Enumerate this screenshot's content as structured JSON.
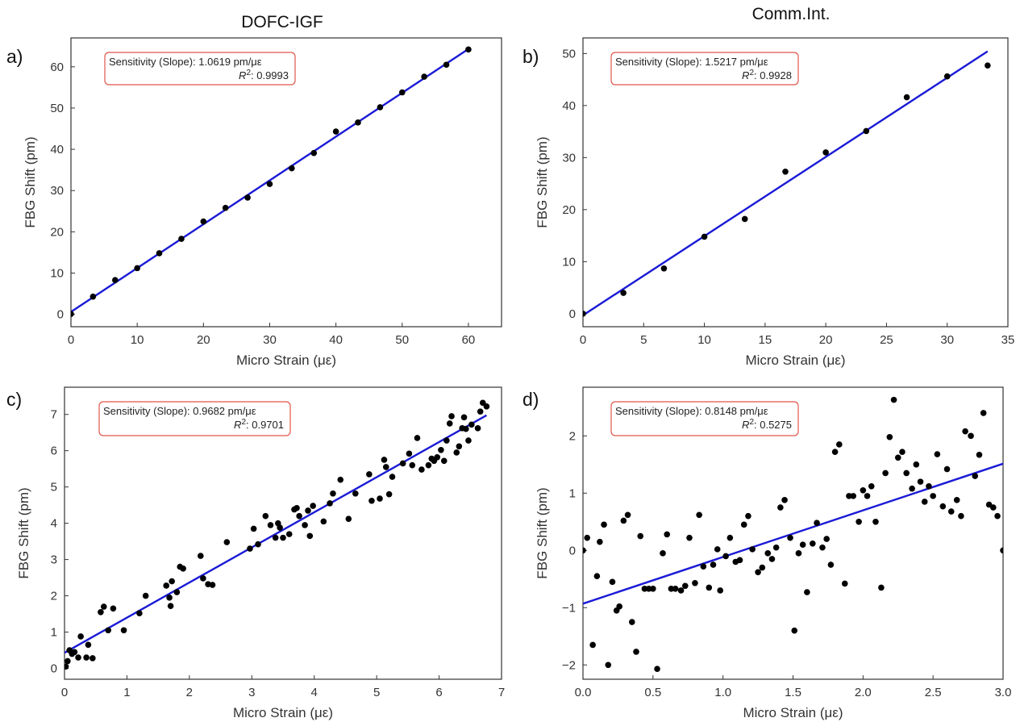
{
  "column_titles": {
    "left": "DOFC-IGF",
    "right": "Comm.Int."
  },
  "chart_data": [
    {
      "type": "scatter",
      "panel_label": "a)",
      "xlabel": "Micro Strain (με)",
      "ylabel": "FBG Shift (pm)",
      "xlim": [
        0,
        65
      ],
      "ylim": [
        -3,
        67
      ],
      "xticks": [
        0,
        10,
        20,
        30,
        40,
        50,
        60
      ],
      "xtick_labels": [
        "0",
        "10",
        "20",
        "30",
        "40",
        "50",
        "60"
      ],
      "yticks": [
        0,
        10,
        20,
        30,
        40,
        50,
        60
      ],
      "ytick_labels": [
        "0",
        "10",
        "20",
        "30",
        "40",
        "50",
        "60"
      ],
      "annotation": {
        "line1": "Sensitivity (Slope): 1.0619 pm/με",
        "r2_value": "0.9993"
      },
      "fit_line": {
        "slope": 1.0619,
        "intercept": 0.6
      },
      "series": [
        {
          "x": [
            0,
            3.33,
            6.67,
            10,
            13.33,
            16.67,
            20,
            23.33,
            26.67,
            30,
            33.33,
            36.67,
            40,
            43.33,
            46.67,
            50,
            53.33,
            56.67,
            60
          ],
          "y": [
            0.1,
            4.3,
            8.3,
            11.2,
            14.8,
            18.3,
            22.5,
            25.8,
            28.3,
            31.6,
            35.4,
            39.1,
            44.3,
            46.5,
            50.2,
            53.8,
            57.6,
            60.5,
            64.2
          ]
        }
      ],
      "grid": false
    },
    {
      "type": "scatter",
      "panel_label": "b)",
      "xlabel": "Micro Strain (με)",
      "ylabel": "FBG Shift (pm)",
      "xlim": [
        0,
        35
      ],
      "ylim": [
        -2.5,
        53
      ],
      "xticks": [
        0,
        5,
        10,
        15,
        20,
        25,
        30,
        35
      ],
      "xtick_labels": [
        "0",
        "5",
        "10",
        "15",
        "20",
        "25",
        "30",
        "35"
      ],
      "yticks": [
        0,
        10,
        20,
        30,
        40,
        50
      ],
      "ytick_labels": [
        "0",
        "10",
        "20",
        "30",
        "40",
        "50"
      ],
      "annotation": {
        "line1": "Sensitivity (Slope): 1.5217 pm/με",
        "r2_value": "0.9928"
      },
      "fit_line": {
        "slope": 1.5217,
        "intercept": -0.3
      },
      "series": [
        {
          "x": [
            0,
            3.33,
            6.67,
            10,
            13.33,
            16.67,
            20,
            23.33,
            26.67,
            30,
            33.33
          ],
          "y": [
            0,
            4,
            8.7,
            14.8,
            18.2,
            27.3,
            31,
            35.1,
            41.6,
            45.6,
            47.7
          ]
        }
      ],
      "grid": false
    },
    {
      "type": "scatter",
      "panel_label": "c)",
      "xlabel": "Micro Strain (με)",
      "ylabel": "FBG Shift (pm)",
      "xlim": [
        0,
        7
      ],
      "ylim": [
        -0.3,
        7.75
      ],
      "xticks": [
        0,
        1,
        2,
        3,
        4,
        5,
        6,
        7
      ],
      "xtick_labels": [
        "0",
        "1",
        "2",
        "3",
        "4",
        "5",
        "6",
        "7"
      ],
      "yticks": [
        0,
        1,
        2,
        3,
        4,
        5,
        6,
        7
      ],
      "ytick_labels": [
        "0",
        "1",
        "2",
        "3",
        "4",
        "5",
        "6",
        "7"
      ],
      "annotation": {
        "line1": "Sensitivity (Slope): 0.9682 pm/με",
        "r2_value": "0.9701"
      },
      "fit_line": {
        "slope": 0.9682,
        "intercept": 0.43
      },
      "series": [
        {
          "x": [
            0.02,
            0.05,
            0.08,
            0.12,
            0.16,
            0.22,
            0.26,
            0.35,
            0.38,
            0.45,
            0.58,
            0.63,
            0.7,
            0.78,
            0.95,
            1.2,
            1.3,
            1.63,
            1.68,
            1.7,
            1.72,
            1.8,
            1.85,
            1.9,
            2.18,
            2.22,
            2.3,
            2.37,
            2.6,
            2.97,
            3.03,
            3.1,
            3.22,
            3.3,
            3.38,
            3.42,
            3.45,
            3.5,
            3.6,
            3.68,
            3.72,
            3.76,
            3.85,
            3.9,
            3.93,
            3.98,
            4.15,
            4.25,
            4.3,
            4.42,
            4.55,
            4.66,
            4.88,
            4.92,
            5.05,
            5.12,
            5.15,
            5.2,
            5.25,
            5.42,
            5.52,
            5.57,
            5.65,
            5.72,
            5.83,
            5.88,
            5.92,
            5.97,
            6.03,
            6.08,
            6.12,
            6.17,
            6.2,
            6.28,
            6.32,
            6.37,
            6.4,
            6.43,
            6.47,
            6.52,
            6.62,
            6.66,
            6.7,
            6.76
          ],
          "y": [
            0.05,
            0.2,
            0.5,
            0.4,
            0.45,
            0.3,
            0.88,
            0.3,
            0.65,
            0.28,
            1.55,
            1.7,
            1.05,
            1.65,
            1.05,
            1.52,
            2.0,
            2.28,
            1.95,
            1.72,
            2.4,
            2.1,
            2.8,
            2.75,
            3.1,
            2.48,
            2.32,
            2.3,
            3.48,
            3.3,
            3.85,
            3.42,
            4.2,
            3.95,
            3.6,
            4.0,
            3.88,
            3.6,
            3.7,
            4.38,
            4.42,
            4.2,
            3.95,
            4.35,
            3.65,
            4.48,
            4.05,
            4.55,
            4.82,
            5.2,
            4.12,
            4.82,
            5.35,
            4.62,
            4.68,
            5.75,
            5.55,
            4.8,
            5.28,
            5.65,
            5.92,
            5.6,
            6.35,
            5.48,
            5.6,
            5.78,
            5.72,
            5.82,
            6.02,
            5.72,
            6.28,
            6.75,
            6.95,
            5.95,
            6.12,
            6.62,
            6.92,
            6.6,
            6.28,
            6.72,
            6.62,
            7.08,
            7.32,
            7.22
          ]
        }
      ],
      "grid": false
    },
    {
      "type": "scatter",
      "panel_label": "d)",
      "xlabel": "Micro Strain (με)",
      "ylabel": "FBG Shift (pm)",
      "xlim": [
        0,
        3.0
      ],
      "ylim": [
        -2.25,
        2.85
      ],
      "xticks": [
        0,
        0.5,
        1.0,
        1.5,
        2.0,
        2.5,
        3.0
      ],
      "xtick_labels": [
        "0.0",
        "0.5",
        "1.0",
        "1.5",
        "2.0",
        "2.5",
        "3.0"
      ],
      "yticks": [
        -2,
        -1,
        0,
        1,
        2
      ],
      "ytick_labels": [
        "−2",
        "−1",
        "0",
        "1",
        "2"
      ],
      "annotation": {
        "line1": "Sensitivity (Slope): 0.8148 pm/με",
        "r2_value": "0.5275"
      },
      "fit_line": {
        "slope": 0.8148,
        "intercept": -0.93
      },
      "series": [
        {
          "x": [
            0.0,
            0.03,
            0.07,
            0.1,
            0.12,
            0.15,
            0.18,
            0.21,
            0.24,
            0.26,
            0.29,
            0.32,
            0.35,
            0.38,
            0.41,
            0.44,
            0.47,
            0.5,
            0.53,
            0.57,
            0.6,
            0.63,
            0.66,
            0.7,
            0.73,
            0.76,
            0.8,
            0.83,
            0.86,
            0.9,
            0.93,
            0.96,
            0.98,
            1.02,
            1.05,
            1.09,
            1.12,
            1.15,
            1.18,
            1.21,
            1.25,
            1.28,
            1.32,
            1.35,
            1.38,
            1.41,
            1.44,
            1.48,
            1.51,
            1.54,
            1.57,
            1.6,
            1.64,
            1.67,
            1.71,
            1.74,
            1.77,
            1.8,
            1.83,
            1.87,
            1.9,
            1.93,
            1.97,
            2.0,
            2.03,
            2.06,
            2.09,
            2.13,
            2.16,
            2.19,
            2.22,
            2.25,
            2.28,
            2.31,
            2.35,
            2.38,
            2.41,
            2.44,
            2.47,
            2.5,
            2.53,
            2.57,
            2.6,
            2.63,
            2.67,
            2.7,
            2.73,
            2.77,
            2.8,
            2.83,
            2.86,
            2.9,
            2.93,
            2.96,
            3.0
          ],
          "y": [
            0.0,
            0.22,
            -1.65,
            -0.45,
            0.15,
            0.45,
            -2.0,
            -0.55,
            -1.05,
            -0.98,
            0.52,
            0.62,
            -1.25,
            -1.77,
            0.25,
            -0.67,
            -0.67,
            -0.67,
            -2.07,
            -0.05,
            0.28,
            -0.67,
            -0.67,
            -0.7,
            -0.62,
            0.22,
            -0.57,
            0.62,
            -0.28,
            -0.65,
            -0.25,
            0.02,
            -0.7,
            -0.1,
            0.22,
            -0.2,
            -0.17,
            0.45,
            0.6,
            0.02,
            -0.38,
            -0.3,
            -0.05,
            -0.15,
            0.05,
            0.75,
            0.88,
            0.22,
            -1.4,
            -0.05,
            0.1,
            -0.73,
            0.12,
            0.48,
            0.05,
            0.2,
            -0.25,
            1.72,
            1.85,
            -0.58,
            0.95,
            0.95,
            0.5,
            1.05,
            0.95,
            1.12,
            0.5,
            -0.65,
            1.35,
            1.98,
            2.63,
            1.62,
            1.72,
            1.35,
            1.08,
            1.5,
            1.2,
            0.85,
            1.12,
            0.95,
            1.68,
            0.77,
            1.42,
            0.68,
            0.88,
            0.6,
            2.08,
            2.0,
            1.3,
            1.67,
            2.4,
            0.8,
            0.75,
            0.6,
            0.0
          ]
        }
      ],
      "grid": false
    }
  ]
}
